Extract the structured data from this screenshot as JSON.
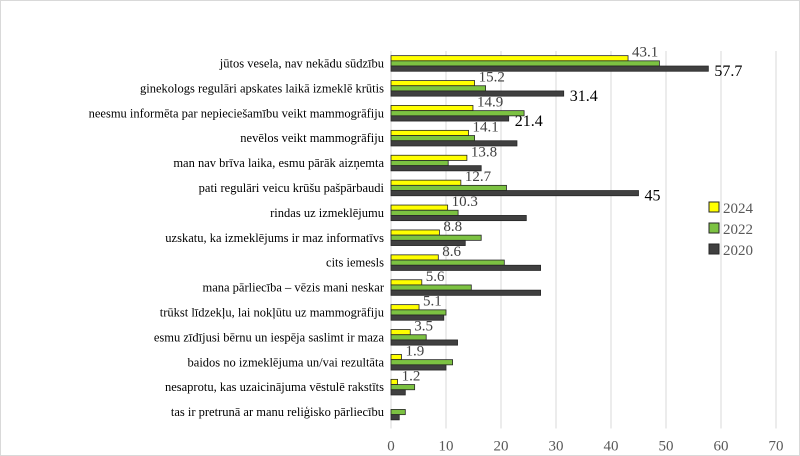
{
  "chart_data": {
    "type": "bar",
    "orientation": "horizontal",
    "categories": [
      "jūtos vesela, nav nekādu sūdzību",
      "ginekologs regulāri apskates laikā izmeklē krūtis",
      "neesmu informēta par nepieciešamību veikt mammogrāfiju",
      "nevēlos veikt mammogrāfiju",
      "man nav brīva laika, esmu pārāk aizņemta",
      "pati regulāri veicu krūšu pašpārbaudi",
      "rindas uz izmeklējumu",
      "uzskatu, ka izmeklējums ir maz informatīvs",
      "cits iemesls",
      "mana pārliecība – vēzis mani neskar",
      "trūkst līdzekļu, lai nokļūtu uz mammogrāfiju",
      "esmu zīdījusi bērnu un iespēja saslimt ir maza",
      "baidos no izmeklējuma un/vai rezultāta",
      "nesaprotu, kas uzaicinājuma vēstulē rakstīts",
      "tas ir pretrunā ar manu reliģisko pārliecību"
    ],
    "series": [
      {
        "name": "2024",
        "color": "#ffff00",
        "values": [
          43.1,
          15.2,
          14.9,
          14.1,
          13.8,
          12.7,
          10.3,
          8.8,
          8.6,
          5.6,
          5.1,
          3.5,
          1.9,
          1.2,
          null
        ],
        "labels": [
          "43.1",
          "15.2",
          "14.9",
          "14.1",
          "13.8",
          "12.7",
          "10.3",
          "8.8",
          "8.6",
          "5.6",
          "5.1",
          "3.5",
          "1.9",
          "1.2",
          ""
        ]
      },
      {
        "name": "2022",
        "color": "#7cc242",
        "values": [
          48.8,
          17.2,
          24.2,
          15.2,
          10.4,
          21.0,
          12.2,
          16.4,
          20.6,
          14.6,
          10.0,
          6.4,
          11.2,
          4.3,
          2.6
        ],
        "labels": [
          "",
          "",
          "",
          "",
          "",
          "",
          "",
          "",
          "",
          "",
          "",
          "",
          "",
          "",
          ""
        ]
      },
      {
        "name": "2020",
        "color": "#404040",
        "values": [
          57.7,
          31.4,
          21.4,
          22.9,
          16.4,
          45,
          24.6,
          13.5,
          27.2,
          27.2,
          9.6,
          12.1,
          10.0,
          2.6,
          1.5
        ],
        "labels": [
          "57.7",
          "31.4",
          "21.4",
          "",
          "",
          "45",
          "",
          "",
          "",
          "",
          "",
          "",
          "",
          "",
          ""
        ]
      }
    ],
    "xlim": [
      0,
      70
    ],
    "xticks": [
      "0",
      "10",
      "20",
      "30",
      "40",
      "50",
      "60",
      "70"
    ],
    "grid": true,
    "legend": "right"
  }
}
